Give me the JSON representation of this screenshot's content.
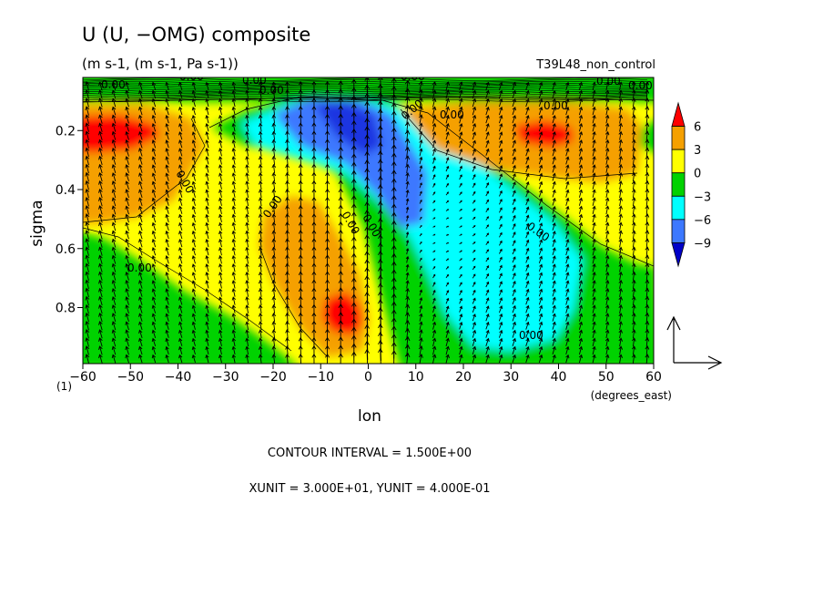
{
  "figure": {
    "title": "U (U, −OMG) composite",
    "units": "(m s-1, (m s-1, Pa s-1))",
    "run_label": "T39L48_non_control",
    "contour_interval": "CONTOUR INTERVAL = 1.500E+00",
    "vector_units": "XUNIT = 3.000E+01, YUNIT = 4.000E-01",
    "corner_label": "(1)"
  },
  "chart_data": {
    "type": "heatmap",
    "title": "U (U, −OMG) composite",
    "xlabel": "lon",
    "xunit_label": "(degrees_east)",
    "ylabel": "sigma",
    "xlim": [
      -60,
      60
    ],
    "ylim": [
      0.02,
      0.99
    ],
    "y_inverted": true,
    "x_ticks": [
      "−60",
      "−50",
      "−40",
      "−30",
      "−20",
      "−10",
      "0",
      "10",
      "20",
      "30",
      "40",
      "50",
      "60"
    ],
    "x_tick_values": [
      -60,
      -50,
      -40,
      -30,
      -20,
      -10,
      0,
      10,
      20,
      30,
      40,
      50,
      60
    ],
    "y_ticks": [
      "0.2",
      "0.4",
      "0.6",
      "0.8"
    ],
    "y_tick_values": [
      0.2,
      0.4,
      0.6,
      0.8
    ],
    "colorbar": {
      "labels": [
        "6",
        "3",
        "0",
        "−3",
        "−6",
        "−9"
      ],
      "levels": [
        6,
        3,
        0,
        -3,
        -6,
        -9
      ],
      "colors": [
        "#ff0000",
        "#f5a000",
        "#ffff00",
        "#00d200",
        "#00ffff",
        "#3c78ff",
        "#0000c8"
      ]
    },
    "contour_labels": [
      "0.00",
      "0.00",
      "0.00",
      "0.00",
      "0.00",
      "0.00",
      "0.00",
      "0.00",
      "0.00",
      "0.00",
      "0.00",
      "0.00",
      "0.00",
      "0.00",
      "0.00",
      "0.00",
      "0.00"
    ],
    "features": [
      {
        "name": "westerly max west",
        "lon": -55,
        "sigma": 0.2,
        "value": 6
      },
      {
        "name": "westerly max east",
        "lon": 35,
        "sigma": 0.2,
        "value": 6
      },
      {
        "name": "low-level westerly",
        "lon": -5,
        "sigma": 0.8,
        "value": 6
      },
      {
        "name": "upper easterly core",
        "lon": -7,
        "sigma": 0.12,
        "value": -9
      },
      {
        "name": "low-level easterly",
        "lon": 25,
        "sigma": 0.75,
        "value": -6
      }
    ],
    "vectors": {
      "field": "(U, -OMG)",
      "grid_dlon": 2.8,
      "grid_dsigma": 0.028
    }
  }
}
